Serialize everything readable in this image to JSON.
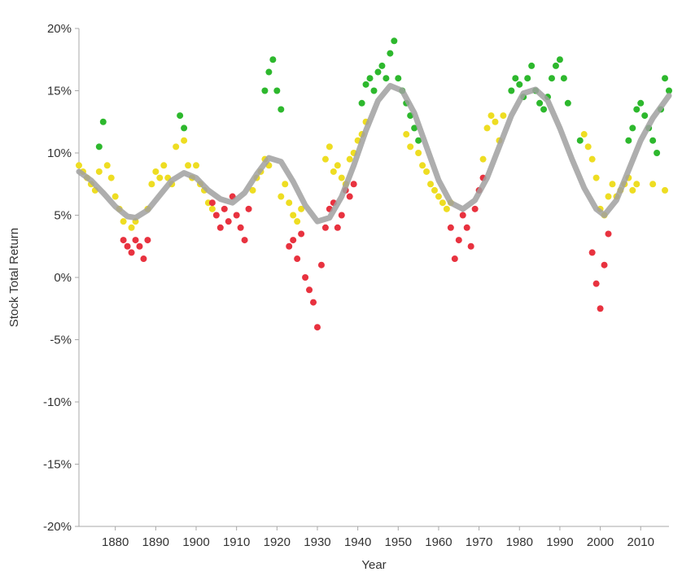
{
  "chart_data": {
    "type": "scatter",
    "title": "",
    "xlabel": "Year",
    "ylabel": "Stock Total Return",
    "xlim": [
      1871,
      2017
    ],
    "ylim": [
      -20,
      20
    ],
    "xticks": [
      1880,
      1890,
      1900,
      1910,
      1920,
      1930,
      1940,
      1950,
      1960,
      1970,
      1980,
      1990,
      2000,
      2010
    ],
    "xtick_labels": [
      "1880",
      "1890",
      "1900",
      "1910",
      "1920",
      "1930",
      "1940",
      "1950",
      "1960",
      "1970",
      "1980",
      "1990",
      "2000",
      "2010"
    ],
    "yticks": [
      -20,
      -15,
      -10,
      -5,
      0,
      5,
      10,
      15,
      20
    ],
    "ytick_labels": [
      "-20%",
      "-15%",
      "-10%",
      "-5%",
      "0%",
      "5%",
      "10%",
      "15%",
      "20%"
    ],
    "grid": false,
    "legend": "none",
    "colors": {
      "high": "#2db82d",
      "mid": "#eedd22",
      "low": "#e8323f",
      "trend": "#a0a0a0"
    },
    "series": [
      {
        "color_key": "mid",
        "x": [
          1871,
          1872,
          1873,
          1874,
          1875,
          1876,
          1878,
          1879,
          1880,
          1881,
          1882,
          1884,
          1885,
          1888,
          1889,
          1890,
          1891,
          1892,
          1893,
          1894,
          1895,
          1897,
          1898,
          1899,
          1900,
          1901,
          1902,
          1903,
          1904,
          1914,
          1915,
          1916,
          1917,
          1918,
          1921,
          1922,
          1923,
          1924,
          1925,
          1926,
          1932,
          1933,
          1934,
          1935,
          1936,
          1937,
          1938,
          1939,
          1940,
          1941,
          1942,
          1952,
          1953,
          1955,
          1956,
          1957,
          1958,
          1959,
          1960,
          1961,
          1962,
          1963,
          1971,
          1972,
          1973,
          1974,
          1975,
          1976,
          1996,
          1997,
          1998,
          1999,
          2000,
          2001,
          2002,
          2003,
          2004,
          2005,
          2006,
          2007,
          2008,
          2009,
          2013,
          2016
        ],
        "y": [
          9,
          8.5,
          8,
          7.5,
          7,
          8.5,
          9,
          8,
          6.5,
          5.5,
          4.5,
          4,
          4.5,
          5.5,
          7.5,
          8.5,
          8,
          9,
          8,
          7.5,
          10.5,
          11,
          9,
          8,
          9,
          7.5,
          7,
          6,
          5.5,
          7,
          8,
          8.5,
          9.5,
          9,
          6.5,
          7.5,
          6,
          5,
          4.5,
          5.5,
          9.5,
          10.5,
          8.5,
          9,
          8,
          7.5,
          9.5,
          10,
          11,
          11.5,
          12.5,
          11.5,
          10.5,
          10,
          9,
          8.5,
          7.5,
          7,
          6.5,
          6,
          5.5,
          6,
          9.5,
          12,
          13,
          12.5,
          11,
          13,
          11.5,
          10.5,
          9.5,
          8,
          5.5,
          5,
          6.5,
          7.5,
          6.5,
          7,
          7.5,
          8,
          7,
          7.5,
          7.5,
          7
        ]
      },
      {
        "color_key": "high",
        "x": [
          1876,
          1877,
          1896,
          1897,
          1917,
          1918,
          1919,
          1920,
          1921,
          1941,
          1942,
          1943,
          1944,
          1945,
          1946,
          1947,
          1948,
          1949,
          1950,
          1951,
          1952,
          1953,
          1954,
          1955,
          1978,
          1979,
          1980,
          1981,
          1982,
          1983,
          1984,
          1985,
          1986,
          1987,
          1988,
          1989,
          1990,
          1991,
          1992,
          1995,
          2007,
          2008,
          2009,
          2010,
          2011,
          2012,
          2013,
          2014,
          2015,
          2016,
          2017
        ],
        "y": [
          10.5,
          12.5,
          13,
          12,
          15,
          16.5,
          17.5,
          15,
          13.5,
          14,
          15.5,
          16,
          15,
          16.5,
          17,
          16,
          18,
          19,
          16,
          15,
          14,
          13,
          12,
          11,
          15,
          16,
          15.5,
          14.5,
          16,
          17,
          15,
          14,
          13.5,
          14.5,
          16,
          17,
          17.5,
          16,
          14,
          11,
          11,
          12,
          13.5,
          14,
          13,
          12,
          11,
          10,
          13.5,
          16,
          15
        ]
      },
      {
        "color_key": "low",
        "x": [
          1882,
          1883,
          1884,
          1885,
          1886,
          1887,
          1888,
          1904,
          1905,
          1906,
          1907,
          1908,
          1909,
          1910,
          1911,
          1912,
          1913,
          1923,
          1924,
          1925,
          1926,
          1927,
          1928,
          1929,
          1930,
          1931,
          1932,
          1933,
          1934,
          1935,
          1936,
          1937,
          1938,
          1939,
          1963,
          1964,
          1965,
          1966,
          1967,
          1968,
          1969,
          1970,
          1971,
          1998,
          1999,
          2000,
          2001,
          2002
        ],
        "y": [
          3,
          2.5,
          2,
          3,
          2.5,
          1.5,
          3,
          6,
          5,
          4,
          5.5,
          4.5,
          6.5,
          5,
          4,
          3,
          5.5,
          2.5,
          3,
          1.5,
          3.5,
          0,
          -1,
          -2,
          -4,
          1,
          4,
          5.5,
          6,
          4,
          5,
          7,
          6.5,
          7.5,
          4,
          1.5,
          3,
          5,
          4,
          2.5,
          5.5,
          7,
          8,
          2,
          -0.5,
          -2.5,
          1,
          3.5
        ]
      }
    ],
    "trend_line": {
      "x": [
        1871,
        1874,
        1877,
        1880,
        1883,
        1885,
        1888,
        1891,
        1894,
        1897,
        1900,
        1903,
        1906,
        1909,
        1912,
        1915,
        1918,
        1921,
        1924,
        1927,
        1930,
        1933,
        1936,
        1939,
        1942,
        1945,
        1948,
        1951,
        1954,
        1957,
        1960,
        1963,
        1966,
        1969,
        1972,
        1975,
        1978,
        1981,
        1984,
        1987,
        1990,
        1993,
        1996,
        1999,
        2001,
        2004,
        2007,
        2010,
        2013,
        2017
      ],
      "y": [
        8.5,
        7.8,
        6.8,
        5.7,
        4.9,
        4.8,
        5.4,
        6.6,
        7.8,
        8.4,
        8.0,
        7.0,
        6.3,
        6.0,
        6.8,
        8.3,
        9.6,
        9.3,
        7.7,
        5.8,
        4.5,
        4.8,
        6.5,
        9.0,
        11.8,
        14.2,
        15.4,
        15.0,
        13.2,
        10.5,
        7.8,
        6.0,
        5.5,
        6.2,
        8.0,
        10.5,
        13.0,
        14.8,
        15.1,
        14.2,
        12.0,
        9.5,
        7.2,
        5.5,
        5.0,
        6.2,
        8.6,
        11.0,
        12.8,
        14.6
      ]
    }
  }
}
